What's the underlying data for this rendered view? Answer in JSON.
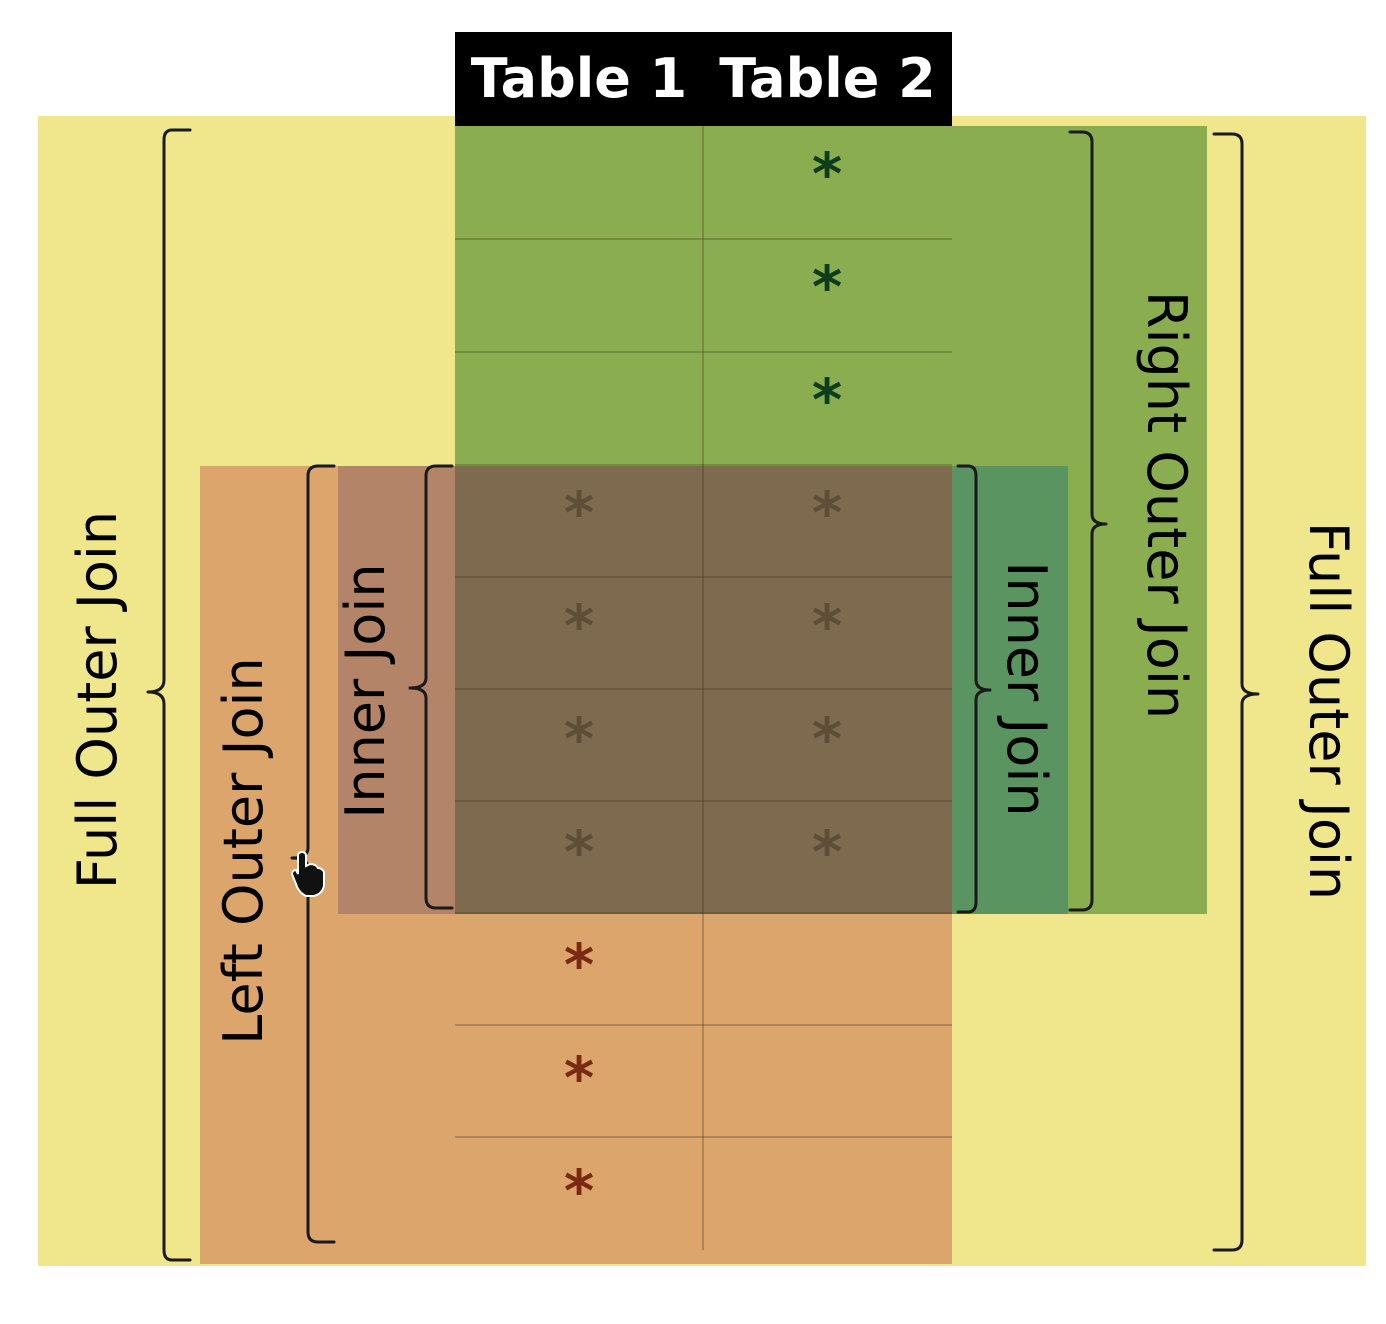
{
  "headers": {
    "table1": "Table 1",
    "table2": "Table 2"
  },
  "labels": {
    "full_outer_left": "Full Outer Join",
    "full_outer_right": "Full Outer Join",
    "left_outer": "Left Outer Join",
    "right_outer": "Right Outer Join",
    "inner_left": "Inner Join",
    "inner_right": "Inner Join"
  },
  "rows": [
    {
      "group": "right-only",
      "table1": "",
      "table2": "*"
    },
    {
      "group": "right-only",
      "table1": "",
      "table2": "*"
    },
    {
      "group": "right-only",
      "table1": "",
      "table2": "*"
    },
    {
      "group": "matched",
      "table1": "*",
      "table2": "*"
    },
    {
      "group": "matched",
      "table1": "*",
      "table2": "*"
    },
    {
      "group": "matched",
      "table1": "*",
      "table2": "*"
    },
    {
      "group": "matched",
      "table1": "*",
      "table2": "*"
    },
    {
      "group": "left-only",
      "table1": "*",
      "table2": ""
    },
    {
      "group": "left-only",
      "table1": "*",
      "table2": ""
    },
    {
      "group": "left-only",
      "table1": "*",
      "table2": ""
    }
  ],
  "colors": {
    "full_outer": "#f0e68c",
    "right_outer": "#8aad4f",
    "right_inner": "#5a9460",
    "left_outer": "#dba56b",
    "left_inner": "#b38468",
    "matched": "#7e6a4e",
    "header": "#000000",
    "star_right": "#0d3d1a",
    "star_matched": "#5e4e39",
    "star_left": "#7a2a12"
  }
}
